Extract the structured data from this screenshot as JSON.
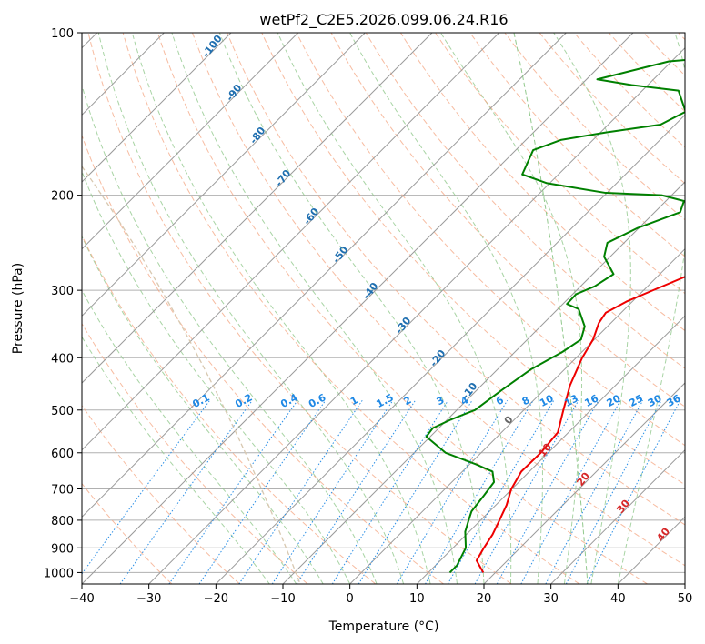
{
  "chart_data": {
    "type": "line",
    "title": "wetPf2_C2E5.2026.099.06.24.R16",
    "xlabel": "Temperature (°C)",
    "ylabel": "Pressure (hPa)",
    "xlim": [
      -40,
      50
    ],
    "ylim": [
      1050,
      100
    ],
    "y_scale": "log",
    "grid": true,
    "x_ticks": [
      -40,
      -30,
      -20,
      -10,
      0,
      10,
      20,
      30,
      40,
      50
    ],
    "x_tick_labels": [
      "−40",
      "−30",
      "−20",
      "−10",
      "0",
      "10",
      "20",
      "30",
      "40",
      "50"
    ],
    "y_ticks": [
      100,
      200,
      300,
      400,
      500,
      600,
      700,
      800,
      900,
      1000
    ],
    "y_tick_labels": [
      "100",
      "200",
      "300",
      "400",
      "500",
      "600",
      "700",
      "800",
      "900",
      "1000"
    ],
    "colors": {
      "temperature": "#ee0000",
      "dewpoint": "#008000",
      "isotherm": "#9a9a9a",
      "dry_adiabat": "#f4a582",
      "moist_adiabat": "#92c98d",
      "mixing_ratio": "#2b8fe6",
      "mixing_label": "#1e88e5",
      "theta_label": "#1f6fb0",
      "theta_warm_label": "#d62728",
      "theta_zero_label": "#666666",
      "isobar": "#b0b0b0",
      "boundary_curve": "#d8c8b0"
    },
    "series": [
      {
        "name": "",
        "key": "temperature",
        "points": [
          [
            18.2,
            1000
          ],
          [
            15.4,
            950
          ],
          [
            14.6,
            900
          ],
          [
            13.9,
            850
          ],
          [
            12.8,
            800
          ],
          [
            11.6,
            750
          ],
          [
            9.9,
            700
          ],
          [
            8.8,
            650
          ],
          [
            8.9,
            600
          ],
          [
            8.4,
            550
          ],
          [
            5.9,
            500
          ],
          [
            3.2,
            450
          ],
          [
            0.9,
            400
          ],
          [
            -0.2,
            370
          ],
          [
            -1.8,
            345
          ],
          [
            -2.3,
            330
          ],
          [
            -0.9,
            315
          ],
          [
            1.4,
            300
          ],
          [
            4.7,
            280
          ],
          [
            7.3,
            260
          ],
          [
            8.2,
            240
          ],
          [
            10.2,
            220
          ],
          [
            12.2,
            205
          ],
          [
            14.2,
            190
          ],
          [
            14.2,
            180
          ],
          [
            12.9,
            170
          ],
          [
            11.9,
            160
          ],
          [
            12.2,
            150
          ],
          [
            13.3,
            140
          ],
          [
            15.3,
            130
          ],
          [
            17.9,
            120
          ],
          [
            19.5,
            112
          ],
          [
            20.2,
            105
          ],
          [
            21.2,
            100
          ]
        ]
      },
      {
        "name": "",
        "key": "dewpoint",
        "points": [
          [
            13.2,
            1000
          ],
          [
            13.2,
            970
          ],
          [
            11.9,
            900
          ],
          [
            9.4,
            840
          ],
          [
            8.2,
            800
          ],
          [
            7.3,
            770
          ],
          [
            6.8,
            720
          ],
          [
            6.3,
            680
          ],
          [
            4.5,
            650
          ],
          [
            0.9,
            630
          ],
          [
            -5.3,
            600
          ],
          [
            -10.6,
            560
          ],
          [
            -10.9,
            540
          ],
          [
            -9.4,
            520
          ],
          [
            -7.3,
            500
          ],
          [
            -6.3,
            460
          ],
          [
            -5.0,
            420
          ],
          [
            -2.9,
            390
          ],
          [
            -2.0,
            370
          ],
          [
            -3.4,
            350
          ],
          [
            -6.9,
            325
          ],
          [
            -9.4,
            318
          ],
          [
            -9.5,
            305
          ],
          [
            -7.9,
            295
          ],
          [
            -6.9,
            280
          ],
          [
            -10.9,
            260
          ],
          [
            -12.5,
            245
          ],
          [
            -10.2,
            230
          ],
          [
            -6.2,
            215
          ],
          [
            -7.3,
            205
          ],
          [
            -11.5,
            200
          ],
          [
            -20.2,
            198
          ],
          [
            -30.4,
            190
          ],
          [
            -35.4,
            183
          ],
          [
            -37.4,
            165
          ],
          [
            -34.8,
            158
          ],
          [
            -29.2,
            153
          ],
          [
            -22.2,
            148
          ],
          [
            -20.4,
            140
          ],
          [
            -24.6,
            128
          ],
          [
            -32.4,
            125
          ],
          [
            -38.4,
            122
          ],
          [
            -30.4,
            113
          ],
          [
            -20.4,
            110
          ],
          [
            -12.2,
            106
          ],
          [
            -12.5,
            102
          ],
          [
            -14.2,
            100
          ]
        ]
      }
    ],
    "mixing_ratio_labels": [
      "0.1",
      "0.2",
      "0.4",
      "0.6",
      "1",
      "1.5",
      "2",
      "3",
      "4",
      "6",
      "8",
      "10",
      "13",
      "16",
      "20",
      "25",
      "30",
      "36"
    ],
    "theta_labels": [
      "-100",
      "-90",
      "-80",
      "-70",
      "-60",
      "-50",
      "-40",
      "-30",
      "-20",
      "-10",
      "0",
      "10",
      "20",
      "30",
      "40"
    ]
  }
}
